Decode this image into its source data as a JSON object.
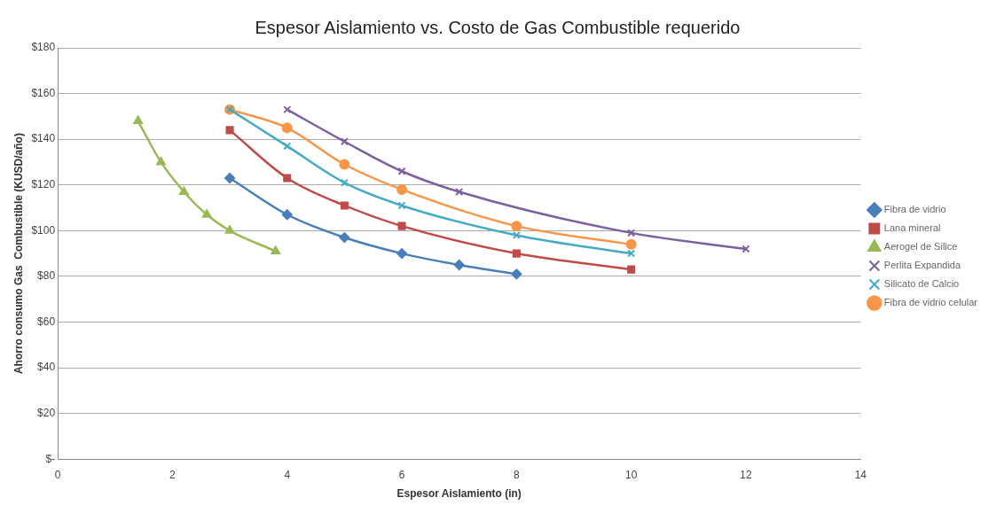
{
  "chart_data": {
    "type": "line",
    "title": "Espesor Aislamiento vs. Costo de Gas Combustible requerido",
    "xlabel": "Espesor Aislamiento (in)",
    "ylabel": "Ahorro consumo Gas  Combustible (KUSD/año)",
    "xlim": [
      0,
      14
    ],
    "xticks": [
      0,
      2,
      4,
      6,
      8,
      10,
      12,
      14
    ],
    "ylim": [
      0,
      180
    ],
    "yticks": [
      {
        "value": 0,
        "label": "$-"
      },
      {
        "value": 20,
        "label": "$20"
      },
      {
        "value": 40,
        "label": "$40"
      },
      {
        "value": 60,
        "label": "$60"
      },
      {
        "value": 80,
        "label": "$80"
      },
      {
        "value": 100,
        "label": "$100"
      },
      {
        "value": 120,
        "label": "$120"
      },
      {
        "value": 140,
        "label": "$140"
      },
      {
        "value": 160,
        "label": "$160"
      },
      {
        "value": 180,
        "label": "$180"
      }
    ],
    "grid": "y",
    "legend": "right",
    "line_style": "solid",
    "series": [
      {
        "name": "Fibra de vidrio",
        "color": "#4a7ebb",
        "marker": "diamond",
        "x": [
          3,
          4,
          5,
          6,
          7,
          8
        ],
        "values": [
          123,
          107,
          97,
          90,
          85,
          81
        ]
      },
      {
        "name": "Lana mineral",
        "color": "#be4b48",
        "marker": "square",
        "x": [
          3,
          4,
          5,
          6,
          8,
          10
        ],
        "values": [
          144,
          123,
          111,
          102,
          90,
          83
        ]
      },
      {
        "name": "Aerogel de Silice",
        "color": "#98b954",
        "marker": "triangle",
        "x": [
          1.4,
          1.8,
          2.2,
          2.6,
          3,
          3.8
        ],
        "values": [
          148,
          130,
          117,
          107,
          100,
          91
        ]
      },
      {
        "name": "Perlita Expandida",
        "color": "#7d60a0",
        "marker": "cross",
        "x": [
          4,
          5,
          6,
          7,
          10,
          12
        ],
        "values": [
          153,
          139,
          126,
          117,
          99,
          92
        ]
      },
      {
        "name": "Silicato de Calcio",
        "color": "#46aac5",
        "marker": "cross",
        "x": [
          3,
          4,
          5,
          6,
          8,
          10
        ],
        "values": [
          153,
          137,
          121,
          111,
          98,
          90
        ]
      },
      {
        "name": "Fibra de vidrio celular",
        "color": "#f79646",
        "marker": "circle",
        "x": [
          3,
          4,
          5,
          6,
          8,
          10
        ],
        "values": [
          153,
          145,
          129,
          118,
          102,
          94
        ]
      }
    ]
  }
}
